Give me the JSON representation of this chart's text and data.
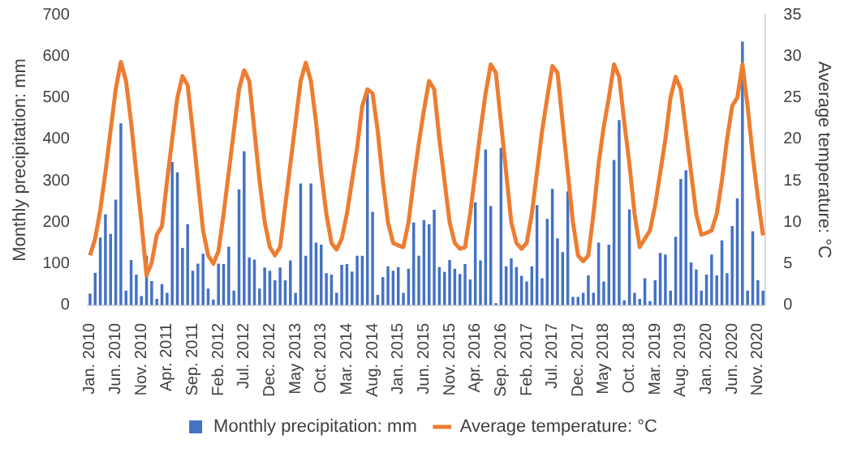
{
  "chart_data": {
    "type": "bar",
    "categories": [
      "Jan. 2010",
      null,
      null,
      null,
      null,
      "Jun. 2010",
      null,
      null,
      null,
      null,
      "Nov. 2010",
      null,
      null,
      null,
      null,
      "Apr. 2011",
      null,
      null,
      null,
      null,
      "Sep. 2011",
      null,
      null,
      null,
      null,
      "Feb. 2012",
      null,
      null,
      null,
      null,
      "Jul. 2012",
      null,
      null,
      null,
      null,
      "Dec. 2012",
      null,
      null,
      null,
      null,
      "May 2013",
      null,
      null,
      null,
      null,
      "Oct. 2013",
      null,
      null,
      null,
      null,
      "Mar. 2014",
      null,
      null,
      null,
      null,
      "Aug. 2014",
      null,
      null,
      null,
      null,
      "Jan. 2015",
      null,
      null,
      null,
      null,
      "Jun. 2015",
      null,
      null,
      null,
      null,
      "Nov. 2015",
      null,
      null,
      null,
      null,
      "Apr. 2016",
      null,
      null,
      null,
      null,
      "Sep. 2016",
      null,
      null,
      null,
      null,
      "Feb. 2017",
      null,
      null,
      null,
      null,
      "Jul. 2017",
      null,
      null,
      null,
      null,
      "Dec. 2017",
      null,
      null,
      null,
      null,
      "May 2018",
      null,
      null,
      null,
      null,
      "Oct. 2018",
      null,
      null,
      null,
      null,
      "Mar. 2019",
      null,
      null,
      null,
      null,
      "Aug. 2019",
      null,
      null,
      null,
      null,
      "Jan. 2020",
      null,
      null,
      null,
      null,
      "Jun. 2020",
      null,
      null,
      null,
      null,
      "Nov. 2020",
      null
    ],
    "ylabel": "Monthly precipitation: mm",
    "y2label": "Average temperature: °C",
    "ylim": [
      0,
      700
    ],
    "yticks": [
      0,
      100,
      200,
      300,
      400,
      500,
      600,
      700
    ],
    "y2lim": [
      0,
      35
    ],
    "y2ticks": [
      0,
      5,
      10,
      15,
      20,
      25,
      30,
      35
    ],
    "legend": "bottom",
    "series": [
      {
        "name": "Monthly precipitation: mm",
        "color": "#4472c4",
        "values": [
          28,
          78,
          163,
          219,
          172,
          254,
          438,
          35,
          109,
          74,
          22,
          119,
          58,
          15,
          51,
          30,
          345,
          320,
          138,
          195,
          83,
          100,
          124,
          40,
          14,
          100,
          99,
          141,
          35,
          279,
          371,
          115,
          110,
          40,
          91,
          83,
          60,
          91,
          60,
          108,
          30,
          293,
          119,
          293,
          151,
          146,
          77,
          74,
          30,
          97,
          99,
          81,
          119,
          119,
          510,
          225,
          25,
          68,
          94,
          83,
          92,
          30,
          88,
          199,
          119,
          205,
          195,
          230,
          92,
          80,
          109,
          88,
          75,
          99,
          62,
          248,
          108,
          375,
          239,
          5,
          379,
          94,
          113,
          92,
          71,
          57,
          94,
          241,
          65,
          208,
          280,
          161,
          128,
          274,
          20,
          20,
          30,
          72,
          30,
          151,
          57,
          146,
          350,
          446,
          12,
          231,
          30,
          15,
          65,
          10,
          60,
          126,
          122,
          35,
          165,
          304,
          325,
          103,
          86,
          35,
          74,
          122,
          72,
          156,
          77,
          191,
          257,
          635,
          35,
          178,
          60,
          35
        ]
      },
      {
        "name": "Average temperature: °C",
        "type": "line",
        "axis": "y2",
        "color": "#ed7d31",
        "values": [
          6,
          8,
          11.5,
          16,
          21,
          26,
          29.3,
          27,
          22,
          16,
          10,
          3.6,
          5.1,
          8.5,
          9.5,
          15,
          20,
          25,
          27.6,
          26.5,
          21,
          15,
          9,
          6,
          5,
          6.5,
          11,
          16,
          21,
          26,
          28.3,
          27,
          21,
          15,
          10,
          7,
          6,
          7,
          12,
          17,
          22,
          27,
          29.2,
          27,
          22,
          16,
          11,
          7.5,
          6.7,
          8,
          11,
          15,
          19,
          24,
          26,
          25.5,
          21,
          15,
          10,
          7.5,
          7.2,
          7,
          10,
          15,
          19.5,
          23.5,
          27,
          26,
          20,
          15,
          10,
          7.5,
          6.8,
          7,
          11,
          16,
          21,
          25.5,
          29,
          28,
          22,
          16,
          10,
          7.5,
          6.8,
          7.5,
          11,
          16,
          21,
          25,
          28.8,
          28,
          22,
          16,
          10,
          6,
          5.3,
          6,
          11,
          17,
          21.5,
          25,
          29,
          27.5,
          22,
          17,
          11,
          7,
          8,
          9,
          12,
          16,
          20,
          25,
          27.5,
          26,
          21,
          16,
          11,
          8.5,
          8.7,
          9,
          11,
          15,
          20,
          24,
          25,
          29,
          24,
          18,
          13,
          8.4
        ]
      }
    ]
  }
}
